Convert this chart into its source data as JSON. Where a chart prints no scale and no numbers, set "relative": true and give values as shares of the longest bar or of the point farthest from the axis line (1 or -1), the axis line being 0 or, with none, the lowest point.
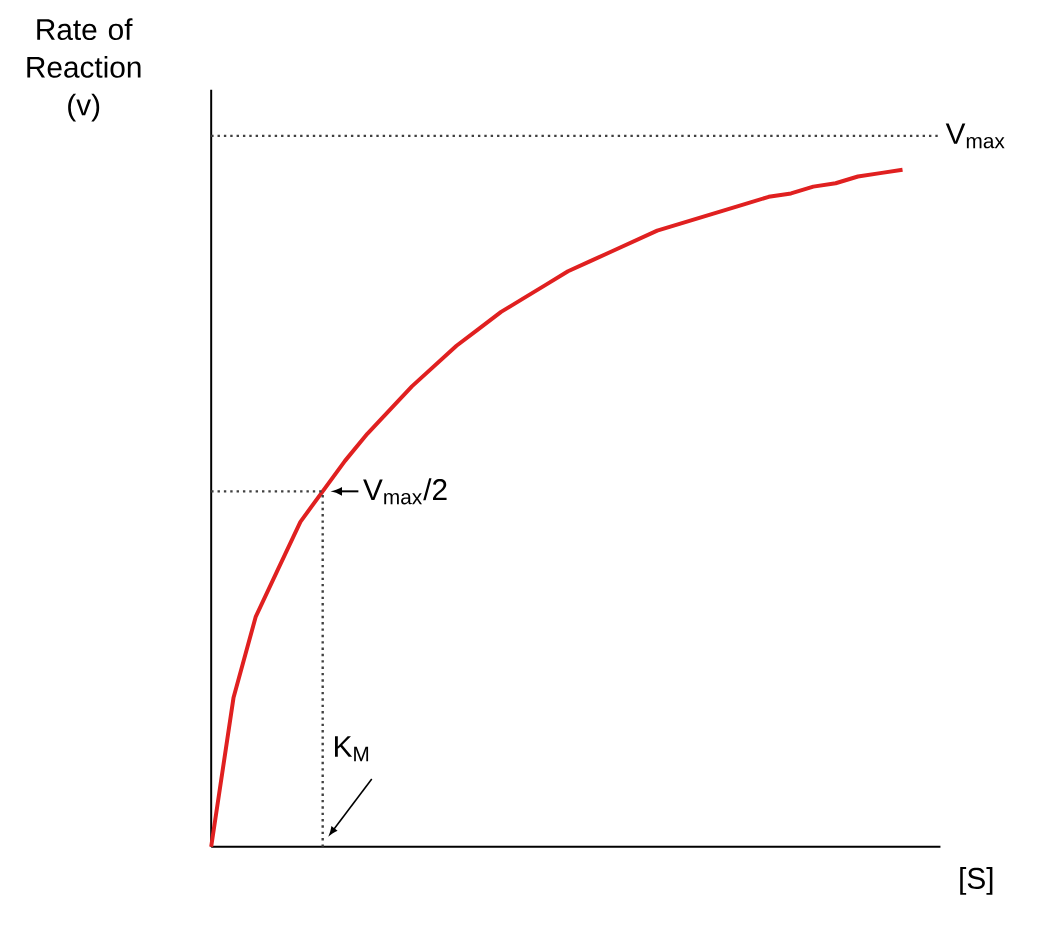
{
  "chart_data": {
    "type": "line",
    "relative": true,
    "ylabel": "Rate of Reaction (v)",
    "xlabel": "[S]",
    "categories": [
      null,
      null,
      null,
      null,
      null,
      null,
      null,
      null,
      null,
      null,
      null,
      null,
      null,
      null,
      null,
      null,
      null,
      null,
      null,
      null,
      null,
      null,
      null,
      null,
      null,
      null,
      null,
      null,
      null,
      null,
      null,
      null
    ],
    "series": [
      {
        "color": "#e02020",
        "line_style": "solid",
        "values": [
          0,
          0.22,
          0.34,
          0.41,
          0.48,
          0.525,
          0.57,
          0.61,
          0.645,
          0.68,
          0.71,
          0.74,
          0.765,
          0.79,
          0.81,
          0.83,
          0.85,
          0.865,
          0.88,
          0.895,
          0.91,
          0.92,
          0.93,
          0.94,
          0.95,
          0.96,
          0.965,
          0.975,
          0.98,
          0.99,
          0.995,
          1.0
        ]
      }
    ],
    "ref_lines": [
      {
        "axis": "y",
        "value": 1.05,
        "label": "V$_{max}$",
        "color": "#404040",
        "line_style": "dotted"
      },
      {
        "axis": "y",
        "value": 0.525,
        "label": "V$_{max}$/2",
        "color": "#404040",
        "line_style": "dotted"
      }
    ],
    "annotations": [
      "K$_{M}$"
    ],
    "marker": "none"
  }
}
